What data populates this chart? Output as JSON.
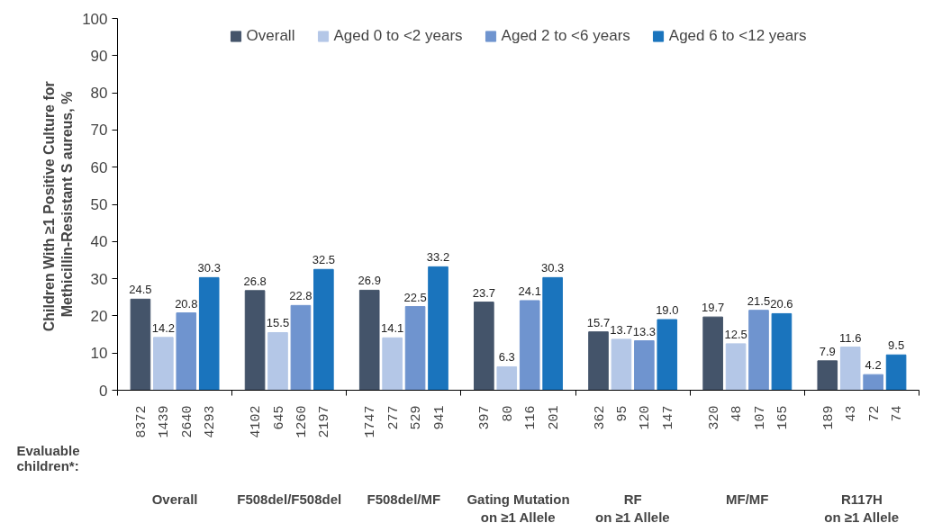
{
  "chart_data": {
    "type": "bar",
    "ylabel": "Children With  ≥1 Positive Culture for\nMethicillin-Resistant S aureus, %",
    "categories": [
      "Overall",
      "F508del/F508del",
      "F508del/MF",
      "Gating Mutation\non ≥1 Allele",
      "RF\non ≥1 Allele",
      "MF/MF",
      "R117H\non ≥1 Allele"
    ],
    "series": [
      {
        "name": "Overall",
        "color": "#44546a",
        "values": [
          24.5,
          26.8,
          26.9,
          23.7,
          15.7,
          19.7,
          7.9
        ],
        "value_labels": [
          "24.5",
          "26.8",
          "26.9",
          "23.7",
          "15.7",
          "19.7",
          "7.9"
        ]
      },
      {
        "name": "Aged 0 to <2 years",
        "color": "#b4c7e7",
        "values": [
          14.2,
          15.5,
          14.1,
          6.3,
          13.7,
          12.5,
          11.6
        ],
        "value_labels": [
          "14.2",
          "15.5",
          "14.1",
          "6.3",
          "13.7",
          "12.5",
          "11.6"
        ]
      },
      {
        "name": "Aged 2 to <6 years",
        "color": "#6f94cf",
        "values": [
          20.8,
          22.8,
          22.5,
          24.1,
          13.3,
          21.5,
          4.2
        ],
        "value_labels": [
          "20.8",
          "22.8",
          "22.5",
          "24.1",
          "13.3",
          "21.5",
          "4.2"
        ]
      },
      {
        "name": "Aged 6 to <12 years",
        "color": "#1a74bd",
        "values": [
          30.3,
          32.5,
          33.2,
          30.3,
          19,
          20.6,
          9.5
        ],
        "value_labels": [
          "30.3",
          "32.5",
          "33.2",
          "30.3",
          "19.0",
          "20.6",
          "9.5"
        ]
      }
    ],
    "ylim": [
      0,
      100
    ],
    "yticks": [
      0,
      10,
      20,
      30,
      40,
      50,
      60,
      70,
      80,
      90,
      100
    ],
    "data_labels": true,
    "legend": "top",
    "grid": false,
    "annotations": [
      "Evaluable\nchildren*:",
      "8372",
      "1439",
      "2640",
      "4293",
      "4102",
      "645",
      "1260",
      "2197",
      "1747",
      "277",
      "529",
      "941",
      "397",
      "80",
      "116",
      "201",
      "362",
      "95",
      "120",
      "147",
      "320",
      "48",
      "107",
      "165",
      "189",
      "43",
      "72",
      "74"
    ]
  }
}
